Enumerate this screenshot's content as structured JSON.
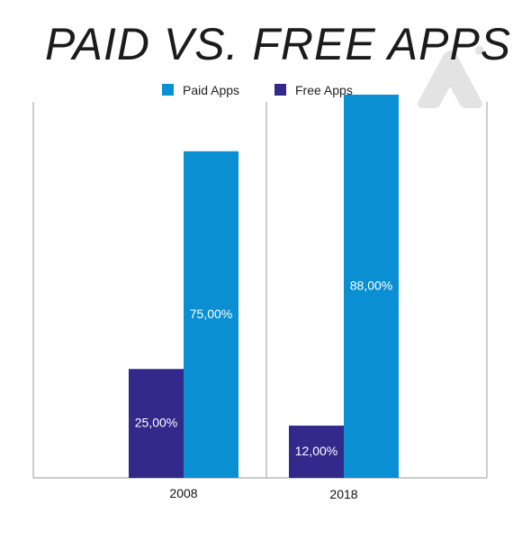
{
  "colors": {
    "paid": "#0a8fd3",
    "free": "#33298a",
    "axis": "#9a9a9a",
    "logo": "#e3e3e3"
  },
  "logo_icon": "stylized-a-logo-icon",
  "chart_data": {
    "type": "bar",
    "title": "PAID VS. FREE APPS",
    "xlabel": "",
    "ylabel": "",
    "ylim": [
      0,
      100
    ],
    "grid": false,
    "legend_position": "top-center",
    "categories": [
      "2008",
      "2018"
    ],
    "series": [
      {
        "name": "Free Apps",
        "values": [
          25,
          12
        ],
        "labels": [
          "25,00%",
          "12,00%"
        ]
      },
      {
        "name": "Paid Apps",
        "values": [
          75,
          88
        ],
        "labels": [
          "75,00%",
          "88,00%"
        ]
      }
    ],
    "legend": [
      "Paid Apps",
      "Free Apps"
    ]
  }
}
